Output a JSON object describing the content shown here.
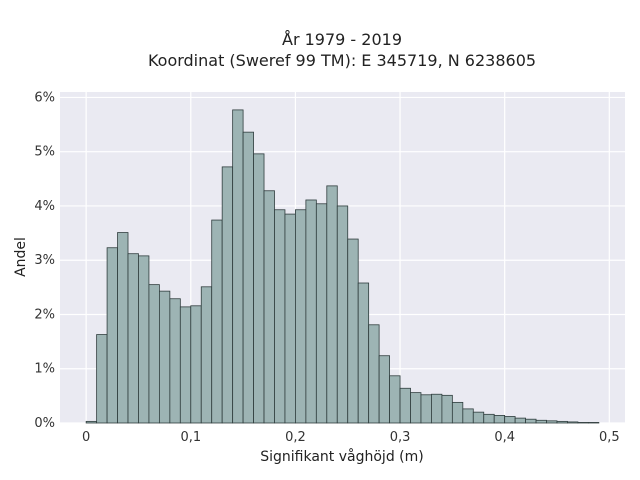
{
  "chart_data": {
    "type": "bar",
    "title": "År 1979 - 2019",
    "subtitle": "Koordinat (Sweref 99 TM): E 345719, N 6238605",
    "xlabel": "Signifikant våghöjd (m)",
    "ylabel": "Andel",
    "xlim": [
      -0.025,
      0.515
    ],
    "ylim": [
      0,
      6.1
    ],
    "grid": true,
    "bin_width": 0.01,
    "x_ticks": [
      0,
      0.1,
      0.2,
      0.3,
      0.4,
      0.5
    ],
    "x_tick_labels": [
      "0",
      "0,1",
      "0,2",
      "0,3",
      "0,4",
      "0,5"
    ],
    "y_ticks": [
      0,
      1,
      2,
      3,
      4,
      5,
      6
    ],
    "y_tick_labels": [
      "0%",
      "1%",
      "2%",
      "3%",
      "4%",
      "5%",
      "6%"
    ],
    "bin_starts": [
      0.0,
      0.01,
      0.02,
      0.03,
      0.04,
      0.05,
      0.06,
      0.07,
      0.08,
      0.09,
      0.1,
      0.11,
      0.12,
      0.13,
      0.14,
      0.15,
      0.16,
      0.17,
      0.18,
      0.19,
      0.2,
      0.21,
      0.22,
      0.23,
      0.24,
      0.25,
      0.26,
      0.27,
      0.28,
      0.29,
      0.3,
      0.31,
      0.32,
      0.33,
      0.34,
      0.35,
      0.36,
      0.37,
      0.38,
      0.39,
      0.4,
      0.41,
      0.42,
      0.43,
      0.44,
      0.45,
      0.46,
      0.47,
      0.48
    ],
    "values": [
      0.03,
      1.63,
      3.23,
      3.51,
      3.12,
      3.08,
      2.55,
      2.43,
      2.29,
      2.14,
      2.16,
      2.51,
      3.74,
      4.72,
      5.77,
      5.36,
      4.96,
      4.28,
      3.93,
      3.85,
      3.93,
      4.11,
      4.04,
      4.37,
      4.0,
      3.39,
      2.58,
      1.81,
      1.24,
      0.87,
      0.64,
      0.56,
      0.52,
      0.53,
      0.51,
      0.38,
      0.26,
      0.2,
      0.16,
      0.14,
      0.12,
      0.09,
      0.07,
      0.05,
      0.04,
      0.03,
      0.02,
      0.01,
      0.01
    ]
  }
}
